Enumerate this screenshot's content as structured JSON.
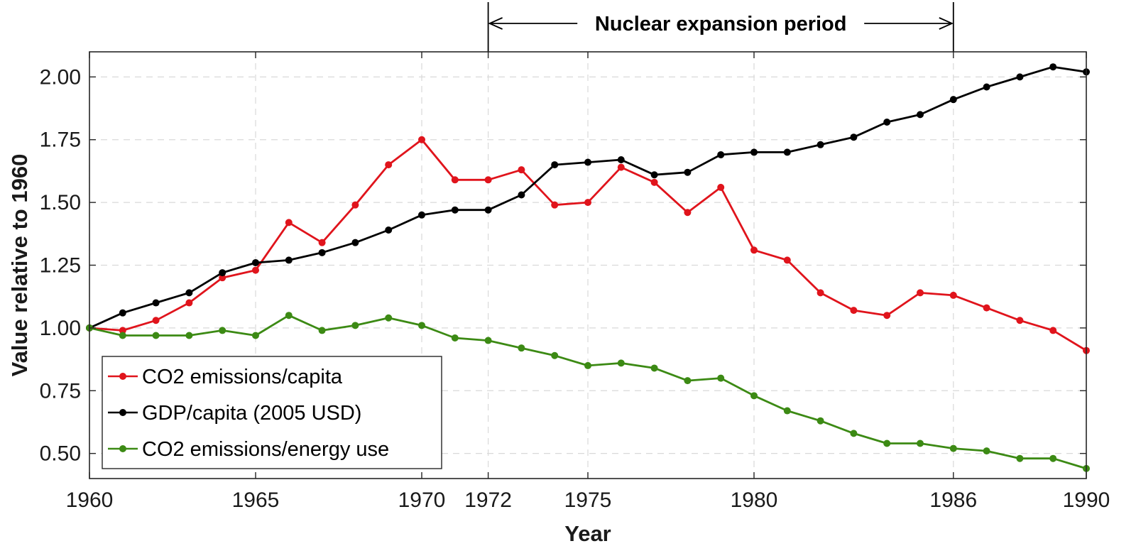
{
  "chart_data": {
    "type": "line",
    "title": "",
    "xlabel": "Year",
    "ylabel": "Value relative to 1960",
    "xlim": [
      1960,
      1990
    ],
    "ylim": [
      0.4,
      2.1
    ],
    "grid": true,
    "legend_position": "bottom-left",
    "x_ticks": [
      1960,
      1965,
      1970,
      1972,
      1975,
      1980,
      1986,
      1990
    ],
    "x_tick_labels": [
      "1960",
      "1965",
      "1970",
      "1972",
      "1975",
      "1980",
      "1986",
      "1990"
    ],
    "y_ticks": [
      0.5,
      0.75,
      1.0,
      1.25,
      1.5,
      1.75,
      2.0
    ],
    "y_tick_labels": [
      "0.50",
      "0.75",
      "1.00",
      "1.25",
      "1.50",
      "1.75",
      "2.00"
    ],
    "x": [
      1960,
      1961,
      1962,
      1963,
      1964,
      1965,
      1966,
      1967,
      1968,
      1969,
      1970,
      1971,
      1972,
      1973,
      1974,
      1975,
      1976,
      1977,
      1978,
      1979,
      1980,
      1981,
      1982,
      1983,
      1984,
      1985,
      1986,
      1987,
      1988,
      1989,
      1990
    ],
    "series": [
      {
        "name": "CO2 emissions/capita",
        "color": "#e0141c",
        "values": [
          1.0,
          0.99,
          1.03,
          1.1,
          1.2,
          1.23,
          1.42,
          1.34,
          1.49,
          1.65,
          1.75,
          1.59,
          1.59,
          1.63,
          1.49,
          1.5,
          1.64,
          1.58,
          1.46,
          1.56,
          1.31,
          1.27,
          1.14,
          1.07,
          1.05,
          1.14,
          1.13,
          1.08,
          1.03,
          0.99,
          0.91
        ]
      },
      {
        "name": "GDP/capita (2005 USD)",
        "color": "#000000",
        "values": [
          1.0,
          1.06,
          1.1,
          1.14,
          1.22,
          1.26,
          1.27,
          1.3,
          1.34,
          1.39,
          1.45,
          1.47,
          1.47,
          1.53,
          1.65,
          1.66,
          1.67,
          1.61,
          1.62,
          1.69,
          1.7,
          1.7,
          1.73,
          1.76,
          1.82,
          1.85,
          1.91,
          1.96,
          2.0,
          2.04,
          2.02
        ]
      },
      {
        "name": "CO2 emissions/energy use",
        "color": "#3c8a14",
        "values": [
          1.0,
          0.97,
          0.97,
          0.97,
          0.99,
          0.97,
          1.05,
          0.99,
          1.01,
          1.04,
          1.01,
          0.96,
          0.95,
          0.92,
          0.89,
          0.85,
          0.86,
          0.84,
          0.79,
          0.8,
          0.73,
          0.67,
          0.63,
          0.58,
          0.54,
          0.54,
          0.52,
          0.51,
          0.48,
          0.48,
          0.44
        ]
      }
    ],
    "annotations": [
      {
        "text": "Nuclear expansion period",
        "type": "span-arrow",
        "x_start": 1972,
        "x_end": 1986
      }
    ]
  }
}
